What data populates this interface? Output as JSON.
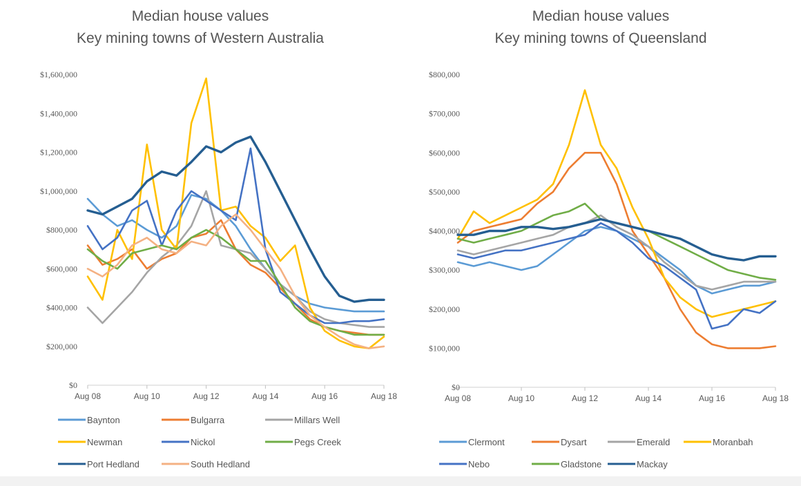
{
  "chart_data": [
    {
      "type": "line",
      "title": "Median house values",
      "subtitle": "Key mining towns of Western Australia",
      "x": [
        "Aug 08",
        "Feb 09",
        "Aug 09",
        "Feb 10",
        "Aug 10",
        "Feb 11",
        "Aug 11",
        "Feb 12",
        "Aug 12",
        "Feb 13",
        "Aug 13",
        "Feb 14",
        "Aug 14",
        "Feb 15",
        "Aug 15",
        "Feb 16",
        "Aug 16",
        "Feb 17",
        "Aug 17",
        "Feb 18",
        "Aug 18"
      ],
      "xtick_labels": [
        "Aug 08",
        "Aug 10",
        "Aug 12",
        "Aug 14",
        "Aug 16",
        "Aug 18"
      ],
      "ytick_labels": [
        "$0",
        "$200,000",
        "$400,000",
        "$600,000",
        "$800,000",
        "$1,000,000",
        "$1,200,000",
        "$1,400,000",
        "$1,600,000"
      ],
      "ylim": [
        0,
        1600000
      ],
      "grid": false,
      "legend_position": "bottom",
      "series": [
        {
          "name": "Baynton",
          "color": "#5B9BD5",
          "values": [
            960000,
            880000,
            820000,
            850000,
            800000,
            760000,
            820000,
            980000,
            960000,
            900000,
            820000,
            700000,
            600000,
            520000,
            460000,
            420000,
            400000,
            390000,
            380000,
            380000,
            380000
          ]
        },
        {
          "name": "Bulgarra",
          "color": "#ED7D31",
          "values": [
            720000,
            620000,
            650000,
            700000,
            600000,
            650000,
            680000,
            760000,
            780000,
            850000,
            700000,
            620000,
            580000,
            500000,
            420000,
            340000,
            300000,
            280000,
            270000,
            260000,
            260000
          ]
        },
        {
          "name": "Millars Well",
          "color": "#A5A5A5",
          "values": [
            400000,
            320000,
            400000,
            480000,
            580000,
            660000,
            720000,
            820000,
            1000000,
            720000,
            700000,
            680000,
            600000,
            520000,
            460000,
            380000,
            340000,
            320000,
            310000,
            300000,
            300000
          ]
        },
        {
          "name": "Newman",
          "color": "#FFC000",
          "values": [
            560000,
            440000,
            800000,
            650000,
            1240000,
            800000,
            700000,
            1350000,
            1580000,
            900000,
            920000,
            820000,
            760000,
            640000,
            720000,
            400000,
            280000,
            230000,
            200000,
            190000,
            250000
          ]
        },
        {
          "name": "Nickol",
          "color": "#4472C4",
          "values": [
            820000,
            700000,
            760000,
            900000,
            950000,
            720000,
            900000,
            1000000,
            950000,
            900000,
            850000,
            1220000,
            700000,
            480000,
            420000,
            360000,
            320000,
            320000,
            330000,
            330000,
            340000
          ]
        },
        {
          "name": "Pegs Creek",
          "color": "#70AD47",
          "values": [
            700000,
            640000,
            600000,
            680000,
            700000,
            720000,
            700000,
            760000,
            800000,
            760000,
            700000,
            640000,
            640000,
            520000,
            400000,
            330000,
            300000,
            280000,
            260000,
            260000,
            260000
          ]
        },
        {
          "name": "Port Hedland",
          "color": "#255E91",
          "values": [
            900000,
            880000,
            920000,
            960000,
            1050000,
            1100000,
            1080000,
            1150000,
            1230000,
            1200000,
            1250000,
            1280000,
            1150000,
            1000000,
            850000,
            700000,
            560000,
            460000,
            430000,
            440000,
            440000
          ]
        },
        {
          "name": "South Hedland",
          "color": "#F4B183",
          "values": [
            600000,
            560000,
            620000,
            720000,
            760000,
            700000,
            680000,
            740000,
            720000,
            820000,
            880000,
            800000,
            700000,
            600000,
            460000,
            360000,
            300000,
            250000,
            210000,
            190000,
            200000
          ]
        }
      ]
    },
    {
      "type": "line",
      "title": "Median house values",
      "subtitle": "Key mining towns of Queensland",
      "x": [
        "Aug 08",
        "Feb 09",
        "Aug 09",
        "Feb 10",
        "Aug 10",
        "Feb 11",
        "Aug 11",
        "Feb 12",
        "Aug 12",
        "Feb 13",
        "Aug 13",
        "Feb 14",
        "Aug 14",
        "Feb 15",
        "Aug 15",
        "Feb 16",
        "Aug 16",
        "Feb 17",
        "Aug 17",
        "Feb 18",
        "Aug 18"
      ],
      "xtick_labels": [
        "Aug 08",
        "Aug 10",
        "Aug 12",
        "Aug 14",
        "Aug 16",
        "Aug 18"
      ],
      "ytick_labels": [
        "$0",
        "$100,000",
        "$200,000",
        "$300,000",
        "$400,000",
        "$500,000",
        "$600,000",
        "$700,000",
        "$800,000"
      ],
      "ylim": [
        0,
        800000
      ],
      "grid": false,
      "legend_position": "bottom",
      "series": [
        {
          "name": "Clermont",
          "color": "#5B9BD5",
          "values": [
            320000,
            310000,
            320000,
            310000,
            300000,
            310000,
            340000,
            370000,
            400000,
            410000,
            400000,
            380000,
            360000,
            330000,
            300000,
            260000,
            240000,
            250000,
            260000,
            260000,
            270000
          ]
        },
        {
          "name": "Dysart",
          "color": "#ED7D31",
          "values": [
            370000,
            400000,
            410000,
            420000,
            430000,
            470000,
            500000,
            560000,
            600000,
            600000,
            520000,
            400000,
            340000,
            280000,
            200000,
            140000,
            110000,
            100000,
            100000,
            100000,
            105000
          ]
        },
        {
          "name": "Emerald",
          "color": "#A5A5A5",
          "values": [
            350000,
            340000,
            350000,
            360000,
            370000,
            380000,
            390000,
            410000,
            420000,
            440000,
            410000,
            390000,
            360000,
            320000,
            290000,
            260000,
            250000,
            260000,
            270000,
            270000,
            270000
          ]
        },
        {
          "name": "Moranbah",
          "color": "#FFC000",
          "values": [
            380000,
            450000,
            420000,
            440000,
            460000,
            480000,
            520000,
            620000,
            760000,
            620000,
            560000,
            460000,
            380000,
            280000,
            230000,
            200000,
            180000,
            190000,
            200000,
            210000,
            220000
          ]
        },
        {
          "name": "Nebo",
          "color": "#4472C4",
          "values": [
            340000,
            330000,
            340000,
            350000,
            350000,
            360000,
            370000,
            380000,
            390000,
            420000,
            400000,
            370000,
            330000,
            310000,
            280000,
            250000,
            150000,
            160000,
            200000,
            190000,
            220000
          ]
        },
        {
          "name": "Gladstone",
          "color": "#70AD47",
          "values": [
            380000,
            370000,
            380000,
            390000,
            400000,
            420000,
            440000,
            450000,
            470000,
            430000,
            420000,
            410000,
            400000,
            380000,
            360000,
            340000,
            320000,
            300000,
            290000,
            280000,
            275000
          ]
        },
        {
          "name": "Mackay",
          "color": "#255E91",
          "values": [
            390000,
            390000,
            400000,
            400000,
            410000,
            410000,
            405000,
            410000,
            420000,
            430000,
            420000,
            410000,
            400000,
            390000,
            380000,
            360000,
            340000,
            330000,
            325000,
            335000,
            335000
          ]
        }
      ]
    }
  ]
}
